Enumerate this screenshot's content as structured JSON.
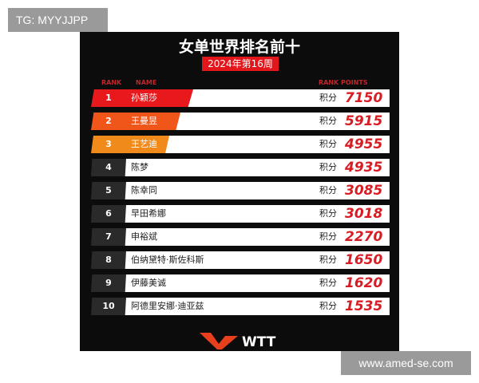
{
  "watermark_top": "TG: MYYJJPP",
  "watermark_bottom": "www.amed-se.com",
  "poster": {
    "title": "女单世界排名前十",
    "week": "2024年第16周",
    "headers": {
      "rank": "RANK",
      "name": "NAME",
      "points": "RANK POINTS"
    },
    "points_label": "积分",
    "logo": "WTT",
    "highlight_colors": [
      "#e8191c",
      "#f0551a",
      "#f08a1a"
    ],
    "rows": [
      {
        "rank": "1",
        "name": "孙颖莎",
        "points": "7150"
      },
      {
        "rank": "2",
        "name": "王曼昱",
        "points": "5915"
      },
      {
        "rank": "3",
        "name": "王艺迪",
        "points": "4955"
      },
      {
        "rank": "4",
        "name": "陈梦",
        "points": "4935"
      },
      {
        "rank": "5",
        "name": "陈幸同",
        "points": "3085"
      },
      {
        "rank": "6",
        "name": "早田希娜",
        "points": "3018"
      },
      {
        "rank": "7",
        "name": "申裕斌",
        "points": "2270"
      },
      {
        "rank": "8",
        "name": "伯纳黛特·斯佐科斯",
        "points": "1650"
      },
      {
        "rank": "9",
        "name": "伊藤美诚",
        "points": "1620"
      },
      {
        "rank": "10",
        "name": "阿德里安娜·迪亚兹",
        "points": "1535"
      }
    ]
  }
}
